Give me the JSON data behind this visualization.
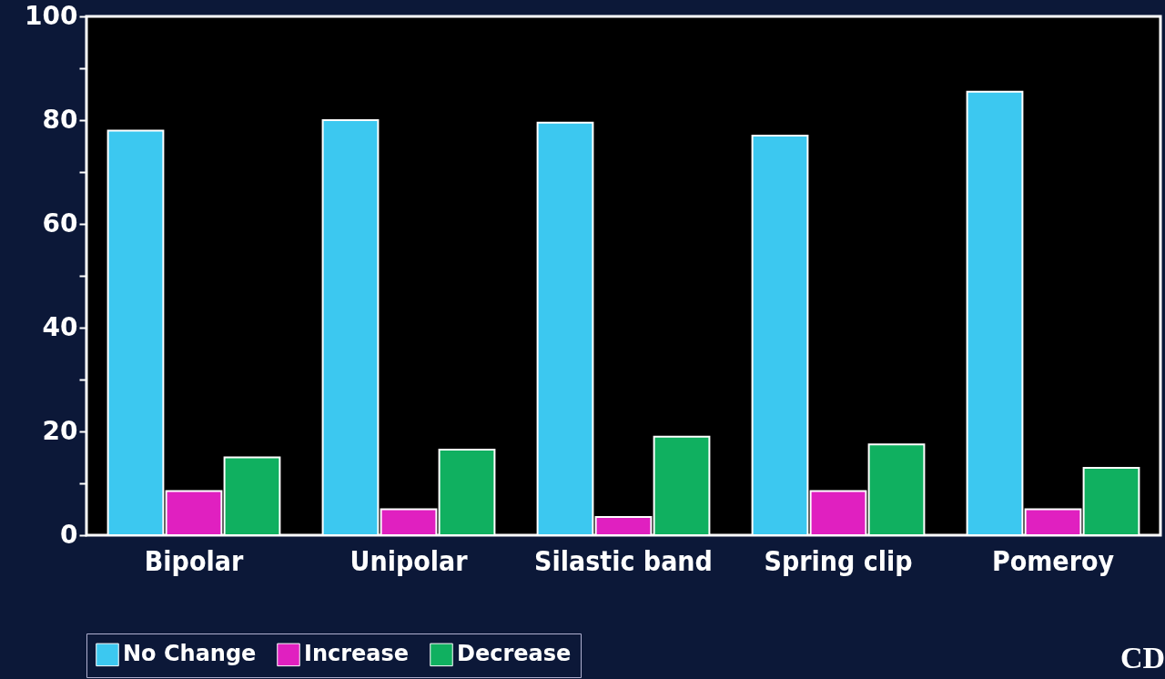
{
  "chart_data": {
    "type": "bar",
    "categories": [
      "Bipolar",
      "Unipolar",
      "Silastic band",
      "Spring clip",
      "Pomeroy"
    ],
    "series": [
      {
        "name": "No Change",
        "color": "#3cc8f0",
        "values": [
          78,
          80,
          79.5,
          77,
          85.5
        ]
      },
      {
        "name": "Increase",
        "color": "#e020c0",
        "values": [
          8.5,
          5,
          3.5,
          8.5,
          5
        ]
      },
      {
        "name": "Decrease",
        "color": "#10b060",
        "values": [
          15,
          16.5,
          19,
          17.5,
          13
        ]
      }
    ],
    "ylim": [
      0,
      100
    ],
    "yticks": [
      0,
      {
        "value": 10,
        "label": null
      },
      20,
      {
        "value": 30,
        "label": null
      },
      40,
      {
        "value": 50,
        "label": null
      },
      60,
      {
        "value": 70,
        "label": null
      },
      80,
      {
        "value": 90,
        "label": null
      },
      100
    ],
    "legend": "bottom",
    "grid": false,
    "annotations": [
      "CD"
    ]
  }
}
